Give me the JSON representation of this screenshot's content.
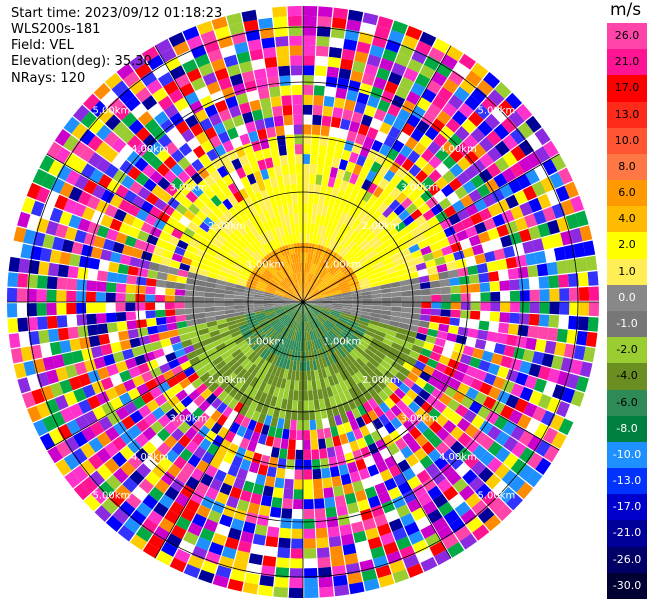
{
  "header": {
    "start_time": "Start time: 2023/09/12 01:18:23",
    "instrument": "WLS200s-181",
    "field": "Field: VEL",
    "elevation": "Elevation(deg): 35.30",
    "nrays": "NRays: 120"
  },
  "colorbar": {
    "unit": "m/s",
    "ticks": [
      "26.0",
      "21.0",
      "17.0",
      "13.0",
      "10.0",
      "8.0",
      "6.0",
      "4.0",
      "2.0",
      "1.0",
      "0.0",
      "-1.0",
      "-2.0",
      "-4.0",
      "-6.0",
      "-8.0",
      "-10.0",
      "-13.0",
      "-17.0",
      "-21.0",
      "-26.0",
      "-30.0"
    ],
    "colors": [
      "#ff44aa",
      "#ff1493",
      "#ff0000",
      "#ff2a1a",
      "#ff5533",
      "#ff7744",
      "#ff9900",
      "#ffbb00",
      "#ffff00",
      "#ffee55",
      "#888888",
      "#777777",
      "#9acd32",
      "#6b8e23",
      "#2e8b57",
      "#008040",
      "#1e90ff",
      "#0033ff",
      "#0000cc",
      "#000099",
      "#000066",
      "#000033"
    ]
  },
  "chart_data": {
    "type": "polar-radar",
    "field": "VEL",
    "units": "m/s",
    "n_rays": 120,
    "elevation_deg": 35.3,
    "range_rings_km": [
      "1.00km",
      "2.00km",
      "3.00km",
      "4.00km",
      "5.00km"
    ],
    "patterns": {
      "near_range_km": 2.8,
      "north_sector": "positive velocities 2–6 m/s",
      "south_sector": "negative velocities -2 to -6 m/s",
      "east_west": "near zero (grey)",
      "far_range": "noise beyond ~3.5 km"
    }
  }
}
